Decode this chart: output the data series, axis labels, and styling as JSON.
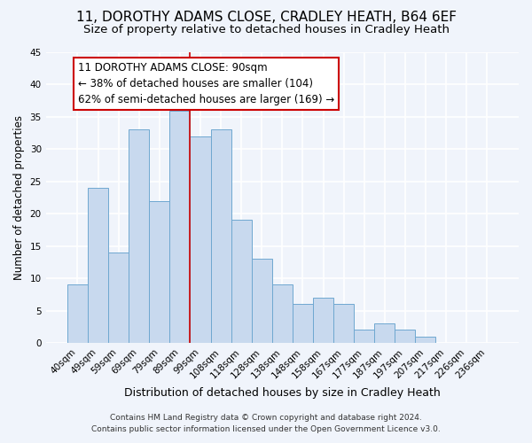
{
  "title": "11, DOROTHY ADAMS CLOSE, CRADLEY HEATH, B64 6EF",
  "subtitle": "Size of property relative to detached houses in Cradley Heath",
  "xlabel": "Distribution of detached houses by size in Cradley Heath",
  "ylabel": "Number of detached properties",
  "bar_labels": [
    "40sqm",
    "49sqm",
    "59sqm",
    "69sqm",
    "79sqm",
    "89sqm",
    "99sqm",
    "108sqm",
    "118sqm",
    "128sqm",
    "138sqm",
    "148sqm",
    "158sqm",
    "167sqm",
    "177sqm",
    "187sqm",
    "197sqm",
    "207sqm",
    "217sqm",
    "226sqm",
    "236sqm"
  ],
  "bar_values": [
    9,
    24,
    14,
    33,
    22,
    36,
    32,
    33,
    19,
    13,
    9,
    6,
    7,
    6,
    2,
    3,
    2,
    1,
    0,
    0,
    0
  ],
  "bar_color": "#c8d9ee",
  "bar_edge_color": "#6fa8d0",
  "vline_color": "#cc0000",
  "annotation_title": "11 DOROTHY ADAMS CLOSE: 90sqm",
  "annotation_line1": "← 38% of detached houses are smaller (104)",
  "annotation_line2": "62% of semi-detached houses are larger (169) →",
  "annotation_box_color": "white",
  "annotation_box_edge": "#cc0000",
  "ylim": [
    0,
    45
  ],
  "footer1": "Contains HM Land Registry data © Crown copyright and database right 2024.",
  "footer2": "Contains public sector information licensed under the Open Government Licence v3.0.",
  "title_fontsize": 11,
  "subtitle_fontsize": 9.5,
  "xlabel_fontsize": 9,
  "ylabel_fontsize": 8.5,
  "tick_fontsize": 7.5,
  "annotation_fontsize": 8.5,
  "footer_fontsize": 6.5,
  "bg_color": "#f0f4fb",
  "plot_bg_color": "#f0f4fb",
  "grid_color": "white",
  "yticks": [
    0,
    5,
    10,
    15,
    20,
    25,
    30,
    35,
    40,
    45
  ],
  "vline_bar_index": 6
}
